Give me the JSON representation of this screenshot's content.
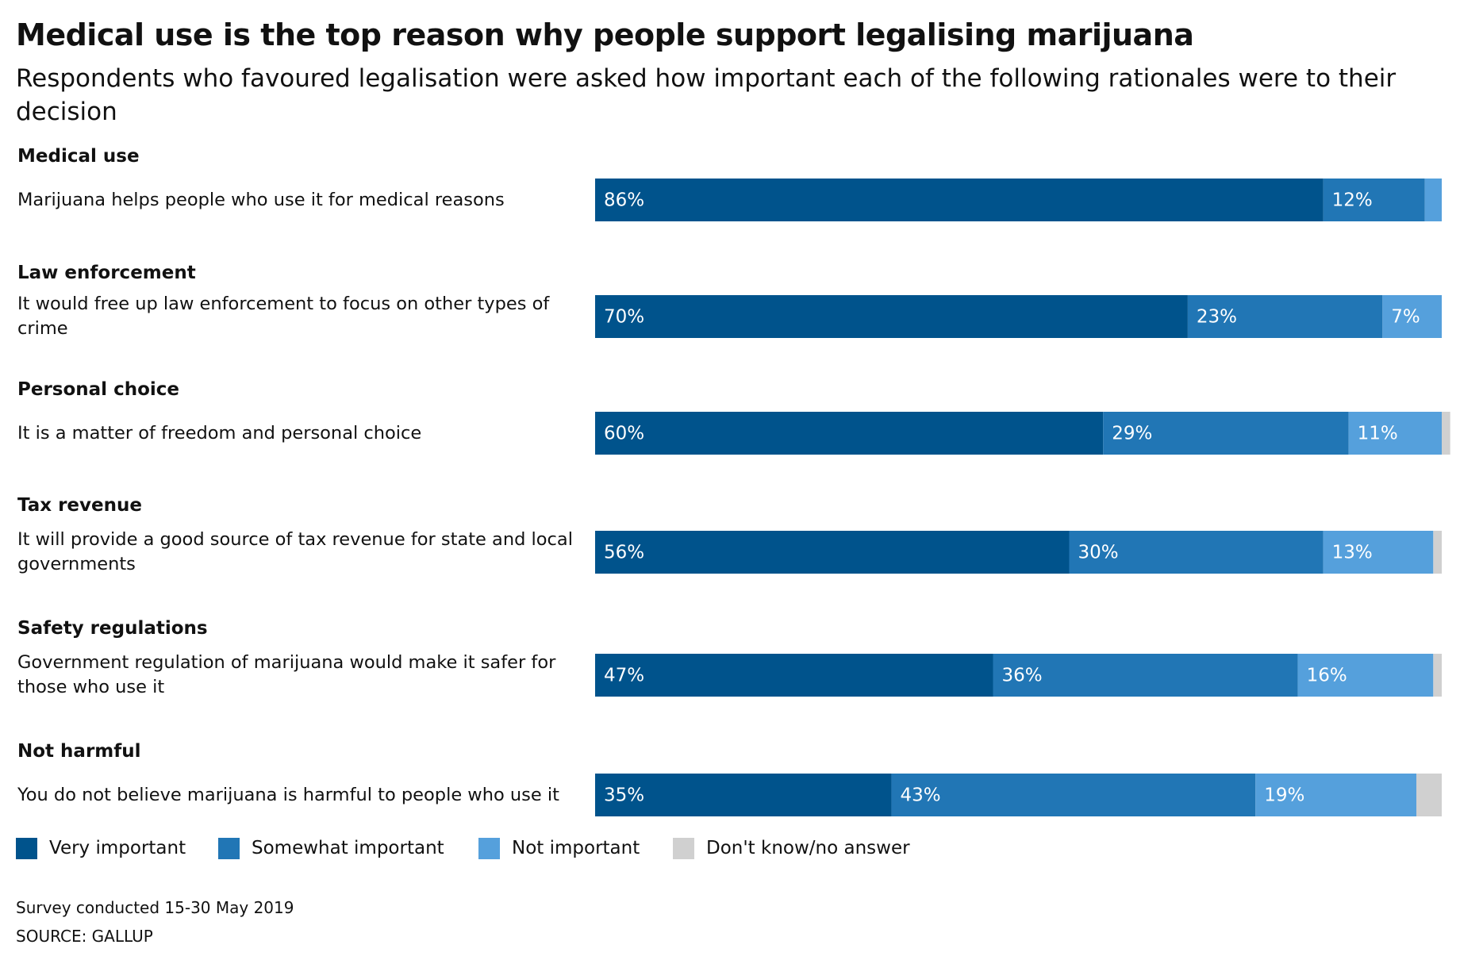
{
  "chart_data": {
    "type": "bar",
    "orientation": "horizontal",
    "stacked": true,
    "title": "Medical use is the top reason why people support legalising marijuana",
    "subtitle": "Respondents who favoured legalisation were asked how important each of the following rationales were to their decision",
    "groups": [
      "Medical use",
      "Law enforcement",
      "Personal choice",
      "Tax revenue",
      "Safety regulations",
      "Not harmful"
    ],
    "categories": [
      "Marijuana helps people who use it for medical reasons",
      "It would free up law enforcement to focus on other types of crime",
      "It is a matter of freedom and personal choice",
      "It will provide a good source of tax revenue for state and local governments",
      "Government regulation of marijuana would make it safer for those who use it",
      "You do not believe marijuana is harmful to people who use it"
    ],
    "xlim": [
      0,
      100
    ],
    "series": [
      {
        "name": "Very important",
        "color": "#00538c",
        "values": [
          86,
          70,
          60,
          56,
          47,
          35
        ],
        "value_labels": [
          "86%",
          "70%",
          "60%",
          "56%",
          "47%",
          "35%"
        ]
      },
      {
        "name": "Somewhat important",
        "color": "#2176b5",
        "values": [
          12,
          23,
          29,
          30,
          36,
          43
        ],
        "value_labels": [
          "12%",
          "23%",
          "29%",
          "30%",
          "36%",
          "43%"
        ]
      },
      {
        "name": "Not important",
        "color": "#55a0dc",
        "values": [
          2,
          7,
          11,
          13,
          16,
          19
        ],
        "value_labels": [
          null,
          "7%",
          "11%",
          "13%",
          "16%",
          "19%"
        ]
      },
      {
        "name": "Don't know/no answer",
        "color": "#d0d0d0",
        "values": [
          0,
          0,
          1,
          1,
          1,
          3
        ],
        "value_labels": [
          null,
          null,
          null,
          null,
          null,
          null
        ]
      }
    ],
    "note": "Survey conducted 15-30 May 2019",
    "source": "SOURCE: GALLUP"
  }
}
